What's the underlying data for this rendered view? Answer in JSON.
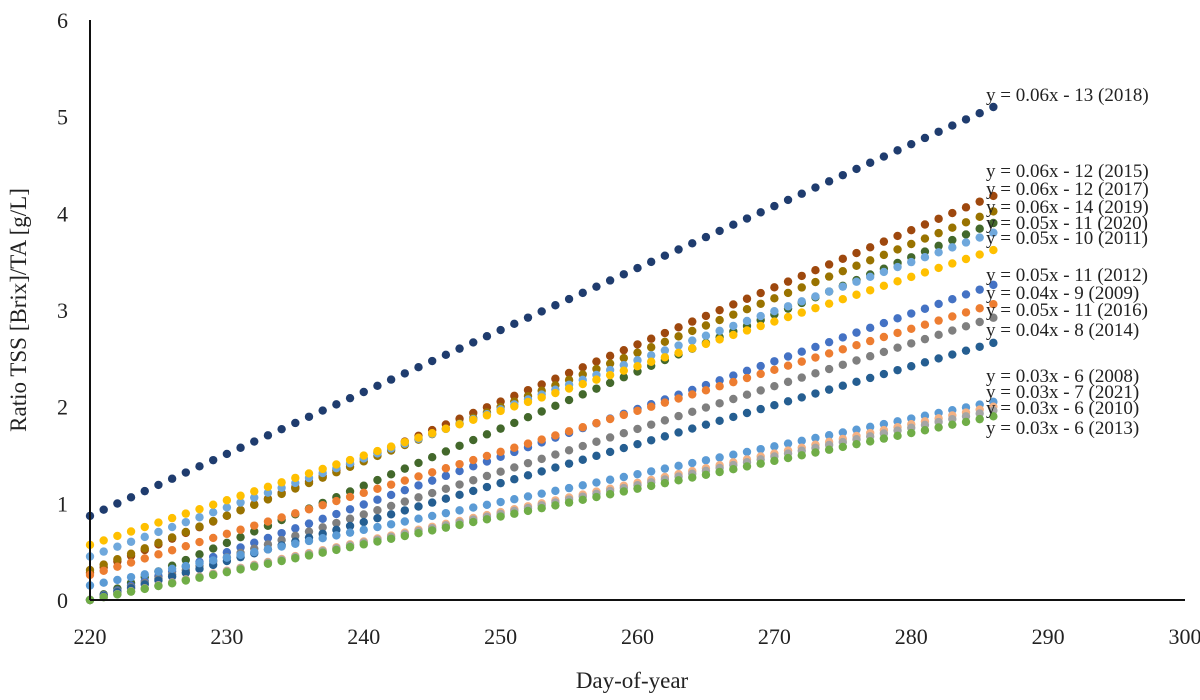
{
  "chart_data": {
    "type": "scatter",
    "xlabel": "Day-of-year",
    "ylabel": "Ratio TSS [Brix]/TA [g/L]",
    "xlim": [
      220,
      300
    ],
    "ylim": [
      0,
      6
    ],
    "xticks": [
      220,
      230,
      240,
      250,
      260,
      270,
      280,
      290,
      300
    ],
    "yticks": [
      0,
      1,
      2,
      3,
      4,
      5,
      6
    ],
    "grid": false,
    "legend": "none",
    "x_start": 220,
    "x_end": 286,
    "series": [
      {
        "name": "2018",
        "equation": "y = 0.06x - 13 (2018)",
        "y_start": 0.87,
        "y_end": 5.1,
        "color": "#1f3c6e"
      },
      {
        "name": "2015",
        "equation": "y = 0.06x - 12 (2015)",
        "y_start": 0.28,
        "y_end": 4.18,
        "color": "#9e480e"
      },
      {
        "name": "2017",
        "equation": "y = 0.06x - 12 (2017)",
        "y_start": 0.31,
        "y_end": 4.02,
        "color": "#997300"
      },
      {
        "name": "2019",
        "equation": "y = 0.06x - 14 (2019)",
        "y_start": 0.0,
        "y_end": 3.9,
        "color": "#43682b"
      },
      {
        "name": "2020",
        "equation": "y = 0.05x - 11 (2020)",
        "y_start": 0.45,
        "y_end": 3.8,
        "color": "#6fa8dc"
      },
      {
        "name": "2011",
        "equation": "y = 0.05x - 10 (2011)",
        "y_start": 0.57,
        "y_end": 3.62,
        "color": "#ffc000"
      },
      {
        "name": "2012",
        "equation": "y = 0.05x - 11 (2012)",
        "y_start": 0.0,
        "y_end": 3.26,
        "color": "#4472c4"
      },
      {
        "name": "2009",
        "equation": "y = 0.04x - 9 (2009)",
        "y_start": 0.26,
        "y_end": 3.06,
        "color": "#ed7d31"
      },
      {
        "name": "2016",
        "equation": "y = 0.05x - 11 (2016)",
        "y_start": 0.0,
        "y_end": 2.92,
        "color": "#7f7f7f"
      },
      {
        "name": "2014",
        "equation": "y = 0.04x - 8 (2014)",
        "y_start": 0.0,
        "y_end": 2.66,
        "color": "#255e91"
      },
      {
        "name": "2008",
        "equation": "y = 0.03x - 6 (2008)",
        "y_start": 0.15,
        "y_end": 2.05,
        "color": "#5b9bd5"
      },
      {
        "name": "2021",
        "equation": "y = 0.03x - 7 (2021)",
        "y_start": 0.0,
        "y_end": 2.0,
        "color": "#f4b183"
      },
      {
        "name": "2010",
        "equation": "y = 0.03x - 6 (2010)",
        "y_start": 0.0,
        "y_end": 1.96,
        "color": "#a5a5a5"
      },
      {
        "name": "2013",
        "equation": "y = 0.03x - 6 (2013)",
        "y_start": 0.0,
        "y_end": 1.9,
        "color": "#70ad47"
      }
    ]
  }
}
